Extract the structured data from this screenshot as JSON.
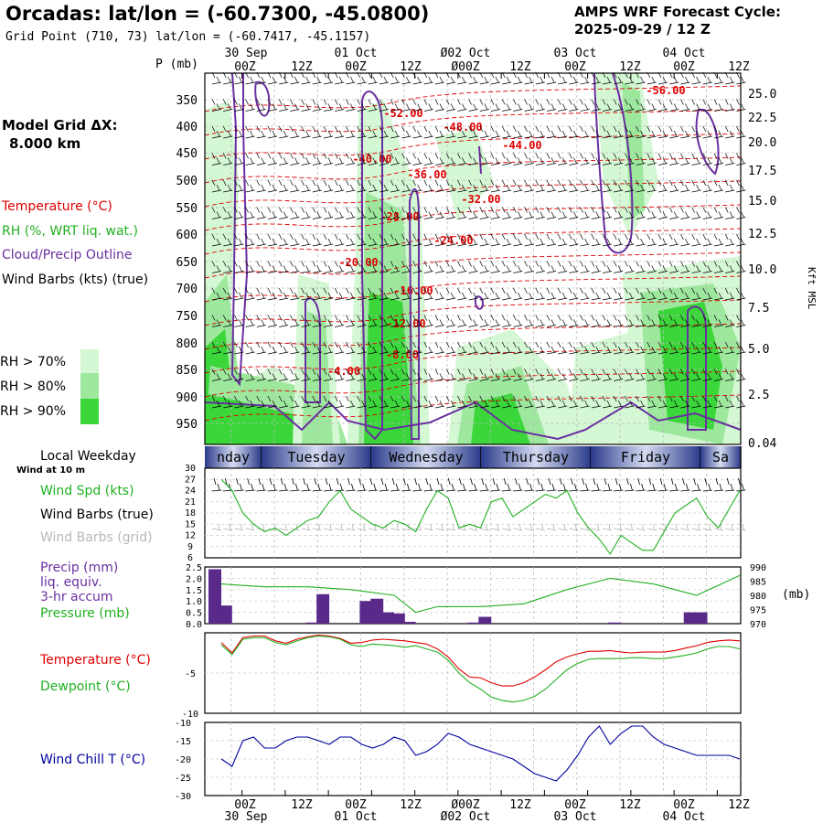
{
  "header": {
    "station_title": "Orcadas:",
    "latlon_title": "lat/lon = (-60.7300, -45.0800)",
    "grid_point": "Grid Point (710, 73) lat/lon = (-60.7417, -45.1157)",
    "cycle_line1": "AMPS WRF Forecast Cycle:",
    "cycle_line2": "2025-09-29 / 12  Z"
  },
  "model_grid": {
    "label": "Model Grid ΔX:",
    "value": "8.000 km"
  },
  "legend": {
    "temperature": "Temperature (°C)",
    "rh": "RH (%, WRT liq. wat.)",
    "cloud": "Cloud/Precip Outline",
    "wind": "Wind Barbs (kts) (true)",
    "rh_levels": [
      {
        "label": "RH > 70%",
        "color": "#d4f7d4"
      },
      {
        "label": "RH > 80%",
        "color": "#9de89d"
      },
      {
        "label": "RH > 90%",
        "color": "#3ad63a"
      }
    ]
  },
  "time_axis": {
    "top_dates": [
      "30 Sep",
      "01 Oct",
      "Ø02 Oct",
      "03 Oct",
      "04 Oct"
    ],
    "hours": [
      "00Z",
      "12Z",
      "00Z",
      "12Z",
      "Ø00Z",
      "12Z",
      "00Z",
      "12Z",
      "00Z",
      "12Z"
    ],
    "bottom_hours": [
      "00Z",
      "12Z",
      "00Z",
      "12Z",
      "Ø00Z",
      "12Z",
      "00Z",
      "12Z",
      "00Z",
      "12Z"
    ],
    "bottom_dates": [
      "30 Sep",
      "01 Oct",
      "Ø02 Oct",
      "03 Oct",
      "04 Oct"
    ]
  },
  "colors": {
    "temperature": "#e00000",
    "rh_green": "#20b020",
    "cloud": "#6a2fa0",
    "wind_chill": "#0000a0",
    "weekday_band": "#2a3a8a",
    "weekday_light": "#c8d0ee"
  },
  "chart_data": [
    {
      "type": "heatmap",
      "name": "time-height cross section",
      "ylabel": "P (mb)",
      "y2label": "Kft MSL",
      "pressure_ticks": [
        "350",
        "400",
        "450",
        "500",
        "550",
        "600",
        "650",
        "700",
        "750",
        "800",
        "850",
        "900",
        "950"
      ],
      "kft_ticks": [
        "25.0",
        "22.5",
        "20.0",
        "17.5",
        "15.0",
        "12.5",
        "10.0",
        "7.5",
        "5.0",
        "2.5",
        "0.04"
      ],
      "temperature_labels": [
        "-56.00",
        "-52.00",
        "-48.00",
        "-44.00",
        "-40.00",
        "-36.00",
        "-32.00",
        "-28.00",
        "-24.00",
        "-20.00",
        "-16.00",
        "-12.00",
        "-8.00",
        "-4.00"
      ]
    },
    {
      "type": "table",
      "name": "weekday band",
      "days": [
        "nday",
        "Tuesday",
        "Wednesday",
        "Thursday",
        "Friday",
        "Sa"
      ],
      "label": "Local Weekday",
      "sublabel": "Wind at 10 m"
    },
    {
      "type": "line",
      "name": "wind speed",
      "series_labels": [
        "Wind Spd (kts)",
        "Wind Barbs (true)",
        "Wind Barbs (grid)"
      ],
      "y_ticks": [
        "30",
        "27",
        "24",
        "21",
        "18",
        "15",
        "12",
        "9",
        "6"
      ],
      "ylim": [
        6,
        30
      ],
      "x": [
        0,
        3,
        6,
        9,
        12,
        15,
        18,
        21,
        24,
        27,
        30,
        33,
        36,
        39,
        42,
        45,
        48,
        51,
        54,
        57,
        60,
        63,
        66,
        69,
        72,
        75,
        78,
        81,
        84,
        87,
        90,
        93,
        96,
        99,
        102,
        105,
        108,
        111,
        114,
        117,
        120,
        123,
        126,
        129,
        132,
        135,
        138,
        141,
        144
      ],
      "values": [
        27,
        24,
        18,
        15,
        13,
        14,
        12,
        14,
        16,
        17,
        21,
        24,
        19,
        17,
        15,
        14,
        16,
        15,
        13,
        19,
        24,
        22,
        14,
        15,
        14,
        21,
        22,
        17,
        19,
        21,
        23,
        22,
        24,
        18,
        14,
        11,
        7,
        12,
        10,
        8,
        8,
        13,
        18,
        20,
        22,
        17,
        14,
        19,
        24
      ]
    },
    {
      "type": "bar",
      "name": "precipitation and pressure",
      "series_labels": [
        "Precip (mm)",
        "liq. equiv.",
        "3-hr accum",
        "Pressure (mb)"
      ],
      "y_ticks": [
        "2.5",
        "2.0",
        "1.5",
        "1.0",
        "0.5",
        "0.0"
      ],
      "y2_ticks": [
        "990",
        "985",
        "980",
        "975",
        "970"
      ],
      "y2_unit": "(mb)",
      "ylim": [
        0,
        2.5
      ],
      "y2lim": [
        970,
        990
      ],
      "precip_x": [
        0,
        3,
        27,
        30,
        42,
        45,
        48,
        51,
        54,
        72,
        75,
        111,
        132,
        135
      ],
      "precip": [
        2.4,
        0.8,
        0.05,
        1.3,
        1.0,
        1.1,
        0.5,
        0.45,
        0.08,
        0.05,
        0.3,
        0.05,
        0.5,
        0.5
      ],
      "pressure_x": [
        0,
        12,
        24,
        36,
        48,
        54,
        60,
        72,
        84,
        96,
        108,
        120,
        132,
        144
      ],
      "pressure": [
        984,
        983,
        983,
        982,
        980,
        974,
        976,
        976,
        977,
        982,
        986,
        984,
        980,
        987
      ]
    },
    {
      "type": "line",
      "name": "temperature and dewpoint",
      "series_labels": [
        "Temperature (°C)",
        "Dewpoint (°C)"
      ],
      "y_ticks": [
        "-5",
        "-10"
      ],
      "ylim": [
        -10,
        0
      ],
      "x": [
        0,
        3,
        6,
        9,
        12,
        15,
        18,
        21,
        24,
        27,
        30,
        33,
        36,
        39,
        42,
        45,
        48,
        51,
        54,
        57,
        60,
        63,
        66,
        69,
        72,
        75,
        78,
        81,
        84,
        87,
        90,
        93,
        96,
        99,
        102,
        105,
        108,
        111,
        114,
        117,
        120,
        123,
        126,
        129,
        132,
        135,
        138,
        141,
        144
      ],
      "temperature": [
        -1.2,
        -2.5,
        -0.6,
        -0.4,
        -0.4,
        -1.0,
        -1.3,
        -0.8,
        -0.5,
        -0.3,
        -0.4,
        -0.7,
        -1.3,
        -1.2,
        -0.9,
        -0.8,
        -0.9,
        -1.0,
        -1.2,
        -1.4,
        -2.0,
        -3.0,
        -4.5,
        -5.5,
        -5.6,
        -6.2,
        -6.6,
        -6.6,
        -6.2,
        -5.5,
        -4.6,
        -3.6,
        -3.0,
        -2.6,
        -2.3,
        -2.3,
        -2.2,
        -2.4,
        -2.5,
        -2.4,
        -2.4,
        -2.4,
        -2.2,
        -1.9,
        -1.6,
        -1.2,
        -1.0,
        -0.9,
        -1.0
      ],
      "dewpoint": [
        -1.5,
        -2.7,
        -0.8,
        -0.6,
        -0.6,
        -1.2,
        -1.5,
        -1.0,
        -0.6,
        -0.4,
        -0.5,
        -0.8,
        -1.5,
        -1.7,
        -1.4,
        -1.5,
        -1.6,
        -1.8,
        -1.6,
        -2.0,
        -2.4,
        -3.4,
        -5.0,
        -6.2,
        -7.0,
        -8.0,
        -8.4,
        -8.6,
        -8.4,
        -7.9,
        -7.0,
        -5.8,
        -4.6,
        -3.8,
        -3.3,
        -3.2,
        -3.2,
        -3.2,
        -3.1,
        -3.1,
        -3.2,
        -3.2,
        -3.0,
        -2.8,
        -2.5,
        -2.0,
        -1.7,
        -1.7,
        -2.0
      ]
    },
    {
      "type": "line",
      "name": "wind chill",
      "series_labels": [
        "Wind Chill T (°C)"
      ],
      "y_ticks": [
        "-10",
        "-15",
        "-20",
        "-25",
        "-30"
      ],
      "ylim": [
        -30,
        -10
      ],
      "x": [
        0,
        3,
        6,
        9,
        12,
        15,
        18,
        21,
        24,
        27,
        30,
        33,
        36,
        39,
        42,
        45,
        48,
        51,
        54,
        57,
        60,
        63,
        66,
        69,
        72,
        75,
        78,
        81,
        84,
        87,
        90,
        93,
        96,
        99,
        102,
        105,
        108,
        111,
        114,
        117,
        120,
        123,
        126,
        129,
        132,
        135,
        138,
        141,
        144
      ],
      "values": [
        -20,
        -22,
        -15,
        -14,
        -17,
        -17,
        -15,
        -14,
        -14,
        -15,
        -16,
        -14,
        -14,
        -16,
        -17,
        -16,
        -14,
        -15,
        -19,
        -18,
        -16,
        -13,
        -14,
        -16,
        -17,
        -18,
        -19,
        -20,
        -22,
        -24,
        -25,
        -26,
        -23,
        -19,
        -14,
        -11,
        -16,
        -13,
        -11,
        -11,
        -14,
        -16,
        -17,
        -18,
        -19,
        -19,
        -19,
        -19,
        -20
      ]
    }
  ]
}
